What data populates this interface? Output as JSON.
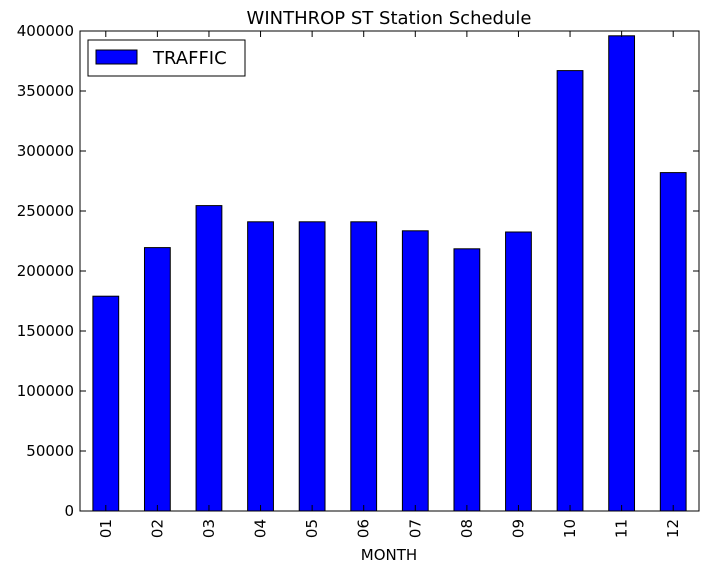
{
  "chart_data": {
    "type": "bar",
    "title": "WINTHROP ST Station Schedule",
    "xlabel": "MONTH",
    "ylabel": "",
    "categories": [
      "01",
      "02",
      "03",
      "04",
      "05",
      "06",
      "07",
      "08",
      "09",
      "10",
      "11",
      "12"
    ],
    "series": [
      {
        "name": "TRAFFIC",
        "values": [
          179000,
          219500,
          254500,
          241000,
          241000,
          241000,
          233500,
          218500,
          232500,
          367000,
          396000,
          282000
        ],
        "color": "#0000ff"
      }
    ],
    "ylim": [
      0,
      400000
    ],
    "yticks": [
      "0",
      "50000",
      "100000",
      "150000",
      "200000",
      "250000",
      "300000",
      "350000",
      "400000"
    ],
    "legend_position": "top-left",
    "grid": false
  }
}
